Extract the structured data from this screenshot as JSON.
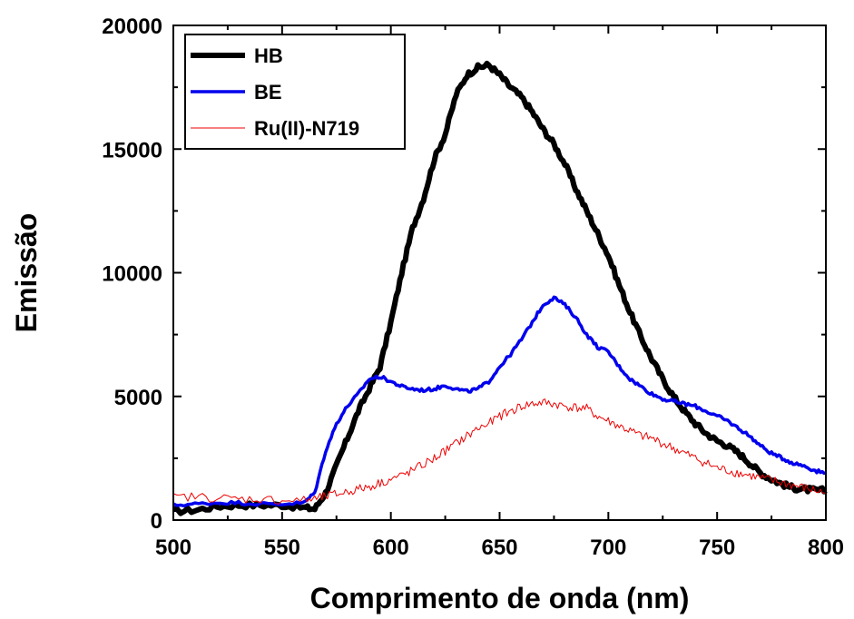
{
  "chart_data": {
    "type": "line",
    "title": "",
    "xlabel": "Comprimento de onda (nm)",
    "ylabel": "Emissão",
    "xlim": [
      500,
      800
    ],
    "ylim": [
      0,
      20000
    ],
    "xticks": [
      "500",
      "550",
      "600",
      "650",
      "700",
      "750",
      "800"
    ],
    "yticks": [
      "0",
      "5000",
      "10000",
      "15000",
      "20000"
    ],
    "grid": false,
    "legend_position": "top-left",
    "series": [
      {
        "name": "HB",
        "color": "#000000",
        "x": [
          500,
          510,
          520,
          530,
          540,
          550,
          560,
          565,
          570,
          575,
          580,
          585,
          590,
          595,
          600,
          605,
          610,
          615,
          620,
          625,
          630,
          635,
          640,
          645,
          650,
          655,
          660,
          665,
          670,
          675,
          680,
          685,
          690,
          695,
          700,
          705,
          710,
          715,
          720,
          725,
          730,
          735,
          740,
          745,
          750,
          755,
          760,
          765,
          770,
          775,
          780,
          785,
          790,
          795,
          800
        ],
        "y": [
          350,
          400,
          550,
          600,
          600,
          600,
          500,
          450,
          1100,
          2200,
          3300,
          4400,
          5300,
          6200,
          8000,
          10000,
          11800,
          13000,
          14600,
          15600,
          17200,
          18000,
          18300,
          18400,
          18000,
          17500,
          17100,
          16500,
          15800,
          15200,
          14400,
          13400,
          12500,
          11600,
          10700,
          9500,
          8400,
          7400,
          6500,
          5700,
          5000,
          4400,
          3900,
          3500,
          3200,
          3000,
          2700,
          2300,
          1900,
          1650,
          1450,
          1300,
          1250,
          1200,
          1200
        ]
      },
      {
        "name": "BE",
        "color": "#0000ee",
        "x": [
          500,
          510,
          520,
          530,
          540,
          550,
          560,
          565,
          570,
          575,
          580,
          585,
          590,
          595,
          600,
          605,
          610,
          615,
          620,
          625,
          630,
          635,
          640,
          645,
          650,
          655,
          660,
          665,
          670,
          675,
          680,
          685,
          690,
          695,
          700,
          705,
          710,
          715,
          720,
          725,
          730,
          735,
          740,
          745,
          750,
          755,
          760,
          765,
          770,
          775,
          780,
          785,
          790,
          795,
          800
        ],
        "y": [
          600,
          650,
          700,
          700,
          650,
          650,
          700,
          1100,
          2800,
          3900,
          4600,
          5100,
          5700,
          5800,
          5600,
          5400,
          5300,
          5250,
          5300,
          5450,
          5300,
          5200,
          5300,
          5600,
          6200,
          6700,
          7300,
          8000,
          8700,
          9000,
          8700,
          8200,
          7500,
          7000,
          6800,
          6200,
          5700,
          5400,
          5100,
          4900,
          4800,
          4700,
          4600,
          4400,
          4200,
          4000,
          3700,
          3400,
          3000,
          2700,
          2500,
          2300,
          2200,
          2000,
          1900
        ]
      },
      {
        "name": "Ru(II)-N719",
        "color": "#ee0000",
        "x": [
          500,
          510,
          520,
          530,
          540,
          550,
          560,
          565,
          570,
          575,
          580,
          585,
          590,
          595,
          600,
          605,
          610,
          615,
          620,
          625,
          630,
          635,
          640,
          645,
          650,
          655,
          660,
          665,
          670,
          675,
          680,
          685,
          690,
          695,
          700,
          705,
          710,
          715,
          720,
          725,
          730,
          735,
          740,
          745,
          750,
          755,
          760,
          765,
          770,
          775,
          780,
          785,
          790,
          795,
          800
        ],
        "y": [
          900,
          950,
          900,
          850,
          850,
          800,
          800,
          850,
          950,
          1050,
          1150,
          1250,
          1350,
          1500,
          1650,
          1800,
          2000,
          2250,
          2500,
          2800,
          3100,
          3400,
          3700,
          3900,
          4200,
          4400,
          4600,
          4700,
          4750,
          4700,
          4600,
          4550,
          4500,
          4200,
          4000,
          3800,
          3600,
          3400,
          3300,
          3100,
          2900,
          2700,
          2500,
          2300,
          2100,
          2000,
          1900,
          1800,
          1700,
          1600,
          1500,
          1400,
          1300,
          1200,
          1100
        ]
      }
    ]
  }
}
